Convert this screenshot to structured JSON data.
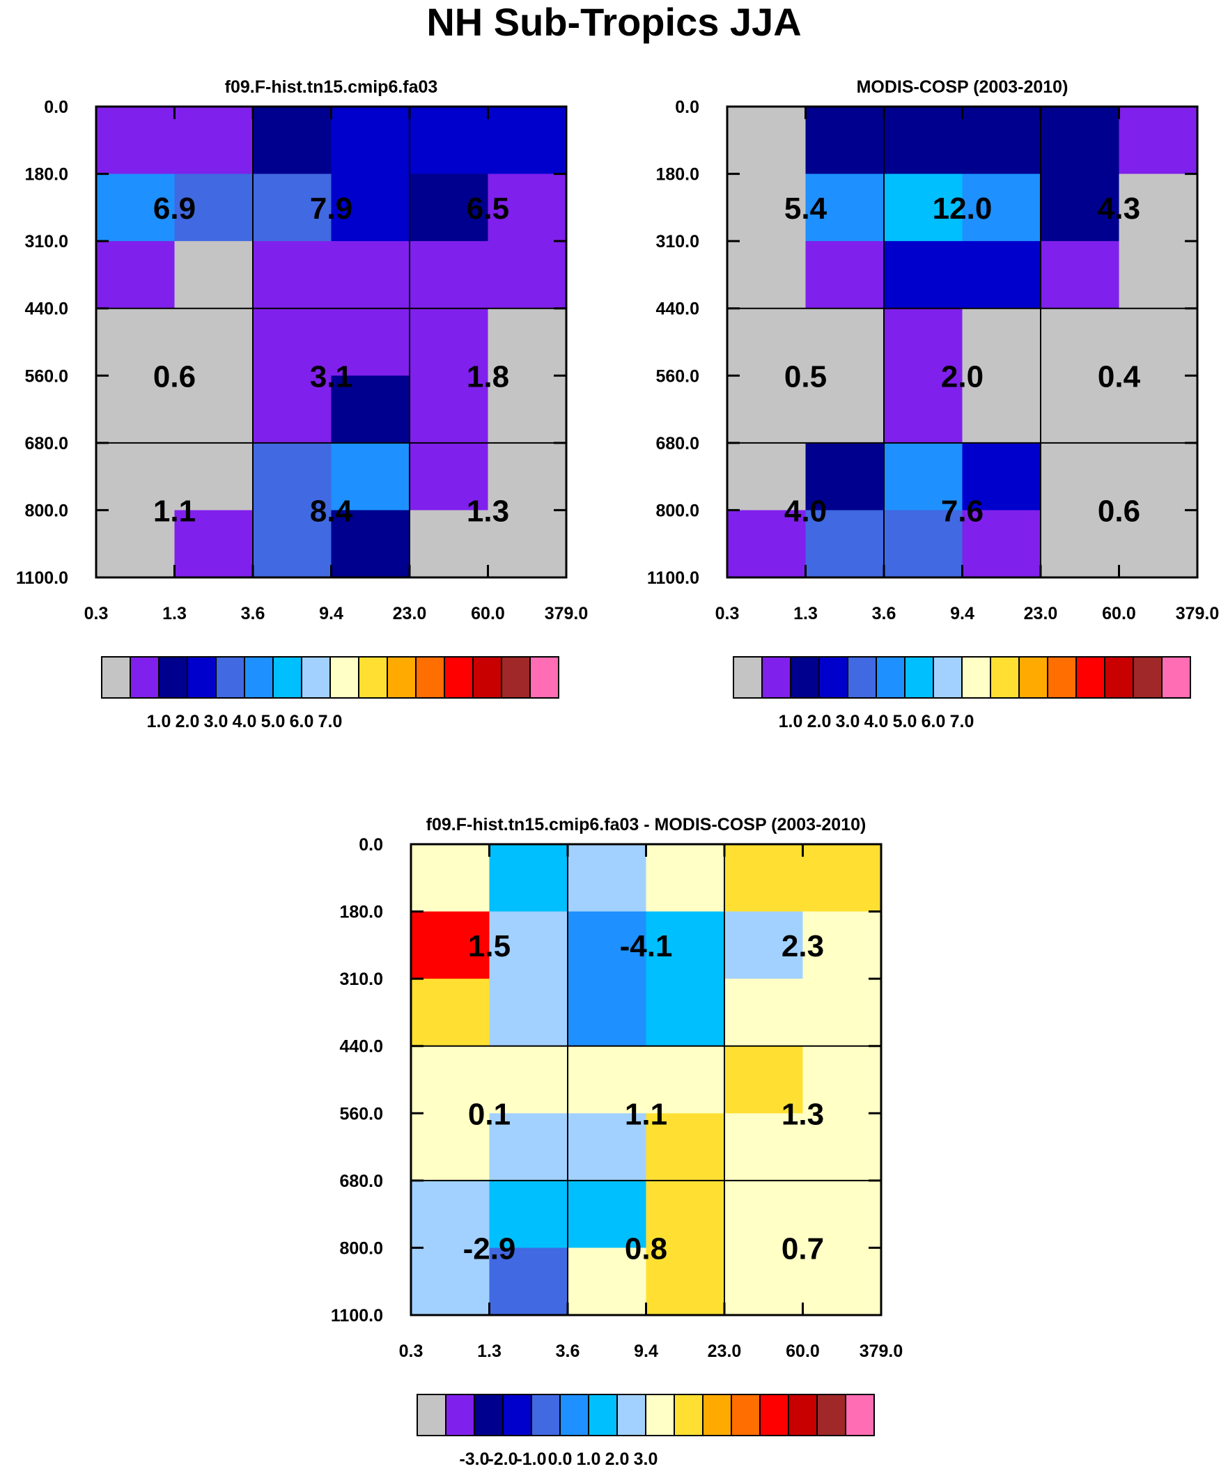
{
  "title": "NH Sub-Tropics JJA",
  "colors": {
    "palette": [
      "#C4C4C4",
      "#8020EC",
      "#00008E",
      "#0000CD",
      "#4169E1",
      "#1E90FF",
      "#00BFFF",
      "#A2D1FF",
      "#FFFFC6",
      "#FFE032",
      "#FFAA00",
      "#FF6E00",
      "#FF0000",
      "#C80000",
      "#A02828",
      "#FF6EB4"
    ]
  },
  "chart_data": [
    {
      "type": "heatmap",
      "title": "f09.F-hist.tn15.cmip6.fa03",
      "x_ticks": [
        "0.3",
        "1.3",
        "3.6",
        "9.4",
        "23.0",
        "60.0",
        "379.0"
      ],
      "y_ticks": [
        "0.0",
        "180.0",
        "310.0",
        "440.0",
        "560.0",
        "680.0",
        "800.0",
        "1100.0"
      ],
      "cell_color_index": [
        [
          1,
          1,
          2,
          3,
          3,
          3
        ],
        [
          5,
          4,
          4,
          3,
          2,
          1
        ],
        [
          1,
          0,
          1,
          1,
          1,
          1
        ],
        [
          0,
          0,
          1,
          1,
          1,
          0
        ],
        [
          0,
          0,
          1,
          2,
          1,
          0
        ],
        [
          0,
          0,
          4,
          5,
          1,
          0
        ],
        [
          0,
          1,
          4,
          2,
          0,
          0
        ]
      ],
      "block_values": [
        [
          "6.9",
          "7.9",
          "6.5"
        ],
        [
          "0.6",
          "3.1",
          "1.8"
        ],
        [
          "1.1",
          "8.4",
          "1.3"
        ]
      ],
      "colorbar_labels": [
        "1.0",
        "2.0",
        "3.0",
        "4.0",
        "5.0",
        "6.0",
        "7.0"
      ]
    },
    {
      "type": "heatmap",
      "title": "MODIS-COSP (2003-2010)",
      "x_ticks": [
        "0.3",
        "1.3",
        "3.6",
        "9.4",
        "23.0",
        "60.0",
        "379.0"
      ],
      "y_ticks": [
        "0.0",
        "180.0",
        "310.0",
        "440.0",
        "560.0",
        "680.0",
        "800.0",
        "1100.0"
      ],
      "cell_color_index": [
        [
          0,
          2,
          2,
          2,
          2,
          1
        ],
        [
          0,
          5,
          6,
          5,
          2,
          0
        ],
        [
          0,
          1,
          3,
          3,
          1,
          0
        ],
        [
          0,
          0,
          1,
          0,
          0,
          0
        ],
        [
          0,
          0,
          1,
          0,
          0,
          0
        ],
        [
          0,
          2,
          5,
          3,
          0,
          0
        ],
        [
          1,
          4,
          4,
          1,
          0,
          0
        ]
      ],
      "block_values": [
        [
          "5.4",
          "12.0",
          "4.3"
        ],
        [
          "0.5",
          "2.0",
          "0.4"
        ],
        [
          "4.0",
          "7.6",
          "0.6"
        ]
      ],
      "colorbar_labels": [
        "1.0",
        "2.0",
        "3.0",
        "4.0",
        "5.0",
        "6.0",
        "7.0"
      ]
    },
    {
      "type": "heatmap",
      "title": "f09.F-hist.tn15.cmip6.fa03 - MODIS-COSP (2003-2010)",
      "x_ticks": [
        "0.3",
        "1.3",
        "3.6",
        "9.4",
        "23.0",
        "60.0",
        "379.0"
      ],
      "y_ticks": [
        "0.0",
        "180.0",
        "310.0",
        "440.0",
        "560.0",
        "680.0",
        "800.0",
        "1100.0"
      ],
      "cell_color_index": [
        [
          8,
          6,
          7,
          8,
          9,
          9
        ],
        [
          12,
          7,
          5,
          6,
          7,
          8
        ],
        [
          9,
          7,
          5,
          6,
          8,
          8
        ],
        [
          8,
          8,
          8,
          8,
          9,
          8
        ],
        [
          8,
          7,
          7,
          9,
          8,
          8
        ],
        [
          7,
          6,
          6,
          9,
          8,
          8
        ],
        [
          7,
          4,
          8,
          9,
          8,
          8
        ]
      ],
      "block_values": [
        [
          "1.5",
          "-4.1",
          "2.3"
        ],
        [
          "0.1",
          "1.1",
          "1.3"
        ],
        [
          "-2.9",
          "0.8",
          "0.7"
        ]
      ],
      "colorbar_labels": [
        "-3.0",
        "-2.0",
        "-1.0",
        "0.0",
        "1.0",
        "2.0",
        "3.0"
      ]
    }
  ]
}
